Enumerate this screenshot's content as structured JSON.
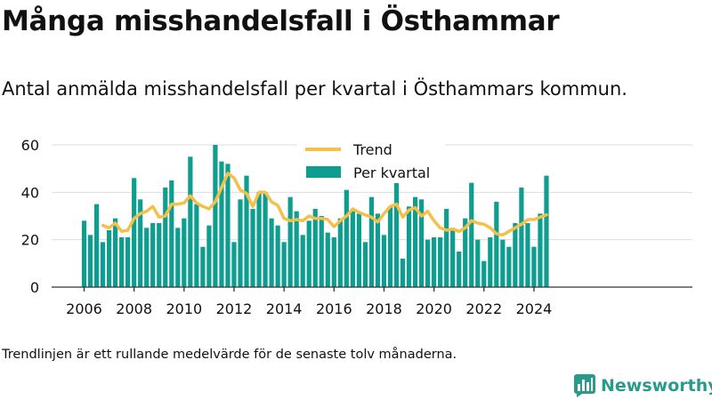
{
  "title": "Många misshandelsfall i Östhammar",
  "subtitle": "Antal anmälda misshandelsfall per kvartal i Östhammars kommun.",
  "footnote": "Trendlinjen är ett rullande medelvärde för de senaste tolv månaderna.",
  "brand": {
    "name": "Newsworthy",
    "icon": "newsworthy-logo-icon"
  },
  "colors": {
    "bars": "#0d9e90",
    "trend": "#f5c04a",
    "text": "#111111",
    "grid": "#dddddd",
    "axis": "#333333"
  },
  "chart_data": {
    "type": "bar",
    "title": "",
    "xlabel": "",
    "ylabel": "",
    "ylim": [
      0,
      60
    ],
    "yticks": [
      0,
      20,
      40,
      60
    ],
    "xticks": [
      "2006",
      "2008",
      "2010",
      "2012",
      "2014",
      "2016",
      "2018",
      "2020",
      "2022",
      "2024"
    ],
    "grid": true,
    "legend_position": "top",
    "x": [
      "2006 Q1",
      "2006 Q2",
      "2006 Q3",
      "2006 Q4",
      "2007 Q1",
      "2007 Q2",
      "2007 Q3",
      "2007 Q4",
      "2008 Q1",
      "2008 Q2",
      "2008 Q3",
      "2008 Q4",
      "2009 Q1",
      "2009 Q2",
      "2009 Q3",
      "2009 Q4",
      "2010 Q1",
      "2010 Q2",
      "2010 Q3",
      "2010 Q4",
      "2011 Q1",
      "2011 Q2",
      "2011 Q3",
      "2011 Q4",
      "2012 Q1",
      "2012 Q2",
      "2012 Q3",
      "2012 Q4",
      "2013 Q1",
      "2013 Q2",
      "2013 Q3",
      "2013 Q4",
      "2014 Q1",
      "2014 Q2",
      "2014 Q3",
      "2014 Q4",
      "2015 Q1",
      "2015 Q2",
      "2015 Q3",
      "2015 Q4",
      "2016 Q1",
      "2016 Q2",
      "2016 Q3",
      "2016 Q4",
      "2017 Q1",
      "2017 Q2",
      "2017 Q3",
      "2017 Q4",
      "2018 Q1",
      "2018 Q2",
      "2018 Q3",
      "2018 Q4",
      "2019 Q1",
      "2019 Q2",
      "2019 Q3",
      "2019 Q4",
      "2020 Q1",
      "2020 Q2",
      "2020 Q3",
      "2020 Q4",
      "2021 Q1",
      "2021 Q2",
      "2021 Q3",
      "2021 Q4",
      "2022 Q1",
      "2022 Q2",
      "2022 Q3",
      "2022 Q4",
      "2023 Q1",
      "2023 Q2",
      "2023 Q3",
      "2023 Q4",
      "2024 Q1",
      "2024 Q2",
      "2024 Q3"
    ],
    "series": [
      {
        "name": "Per kvartal",
        "kind": "bar",
        "values": [
          28,
          22,
          35,
          19,
          24,
          29,
          21,
          21,
          46,
          37,
          25,
          27,
          27,
          42,
          45,
          25,
          29,
          55,
          35,
          17,
          26,
          60,
          53,
          52,
          19,
          37,
          47,
          33,
          40,
          40,
          29,
          26,
          19,
          38,
          32,
          22,
          28,
          33,
          30,
          23,
          21,
          29,
          41,
          32,
          31,
          19,
          38,
          31,
          22,
          34,
          49,
          12,
          34,
          38,
          37,
          20,
          21,
          21,
          33,
          25,
          15,
          29,
          44,
          20,
          11,
          21,
          36,
          20,
          17,
          27,
          42,
          27,
          17,
          31,
          47
        ]
      },
      {
        "name": "Trend",
        "kind": "line",
        "values": [
          null,
          null,
          null,
          26,
          25,
          27,
          23.5,
          24,
          29,
          31,
          32,
          34,
          29.5,
          30,
          35,
          35,
          35.5,
          38.5,
          35.5,
          34,
          33,
          36,
          42,
          48,
          46,
          41,
          39.5,
          34,
          40,
          40,
          36,
          34.5,
          29,
          28,
          28.5,
          28,
          30,
          29,
          29,
          28.5,
          25.5,
          28,
          30,
          33,
          31.5,
          30.5,
          29.5,
          27.5,
          31,
          34,
          35,
          29.5,
          32.5,
          33.5,
          30,
          32,
          28,
          25,
          24,
          24.5,
          23.5,
          25,
          28,
          27,
          26.5,
          25,
          22.5,
          22,
          23.5,
          25,
          26.5,
          28.5,
          28.5,
          29.5,
          30.5
        ]
      }
    ]
  }
}
